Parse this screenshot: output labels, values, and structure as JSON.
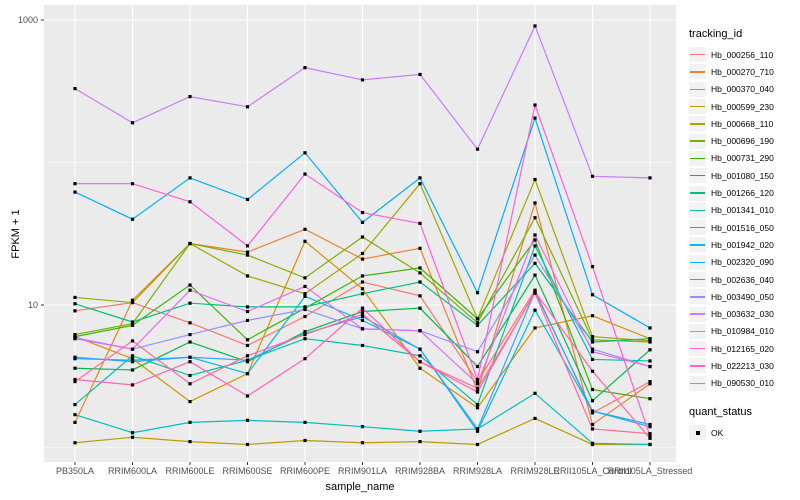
{
  "chart": {
    "y_axis_title": "FPKM + 1",
    "x_axis_title": "sample_name",
    "legend": {
      "tracking_title": "tracking_id",
      "quant_title": "quant_status",
      "quant_ok_label": "OK"
    },
    "colors": {
      "panel_bg": "#ebebeb",
      "gridline": "#ffffff",
      "tick_text": "#4d4d4d",
      "point": "#000000",
      "legend_key_bg": "#f2f2f2"
    }
  },
  "chart_data": {
    "type": "line",
    "title": "",
    "xlabel": "sample_name",
    "ylabel": "FPKM + 1",
    "yscale": "log10",
    "ylim": [
      1,
      1000
    ],
    "y_major_ticks": [
      {
        "label": "10",
        "value": 10
      },
      {
        "label": "1000",
        "value": 1000
      }
    ],
    "y_minor_ticks": [
      1,
      100
    ],
    "grid": true,
    "legend_position": "right",
    "point_shape": "filled-square",
    "quant_status_series": "OK",
    "categories": [
      "PB350LA",
      "RRIM600LA",
      "RRIM600LE",
      "RRIM600SE",
      "RRIM600PE",
      "RRIM901LA",
      "RRIM928BA",
      "RRIM928LA",
      "RRIM928LE",
      "RRII105LA_Control",
      "RRII105LA_Stressed"
    ],
    "series": [
      {
        "name": "Hb_000256_110",
        "color": "#F8766D",
        "values": [
          9.1,
          10.4,
          7.5,
          5.2,
          8.3,
          14.5,
          11.6,
          2.9,
          12.7,
          1.75,
          2.9
        ]
      },
      {
        "name": "Hb_000270_710",
        "color": "#EA8331",
        "values": [
          1.5,
          10.8,
          27,
          23.5,
          34,
          21,
          25,
          2.5,
          52,
          1.45,
          2.8
        ]
      },
      {
        "name": "Hb_000370_040",
        "color": "#D89000",
        "values": [
          6.0,
          4.2,
          2.1,
          3.3,
          28,
          13,
          3.6,
          1.9,
          6.9,
          8.4,
          5.8
        ]
      },
      {
        "name": "Hb_000599_230",
        "color": "#C09B00",
        "values": [
          1.08,
          1.18,
          1.1,
          1.05,
          1.12,
          1.08,
          1.1,
          1.05,
          1.6,
          1.05,
          1.05
        ]
      },
      {
        "name": "Hb_000668_110",
        "color": "#A3A500",
        "values": [
          11.3,
          10.4,
          27,
          16,
          12,
          23,
          71,
          8.0,
          76,
          6.0,
          5.6
        ]
      },
      {
        "name": "Hb_000696_190",
        "color": "#7CAE00",
        "values": [
          6.2,
          7.4,
          27,
          22.4,
          15.5,
          30,
          16.8,
          7.5,
          41,
          5.7,
          5.5
        ]
      },
      {
        "name": "Hb_000731_290",
        "color": "#39B600",
        "values": [
          6.0,
          7.2,
          13.8,
          5.7,
          9.5,
          16,
          18.2,
          8.0,
          28.6,
          2.55,
          2.2
        ]
      },
      {
        "name": "Hb_001080_150",
        "color": "#00BB4E",
        "values": [
          3.6,
          3.5,
          5.5,
          4.0,
          6.5,
          9.0,
          9.5,
          3.7,
          16.2,
          2.13,
          4.85
        ]
      },
      {
        "name": "Hb_001266_120",
        "color": "#00BF7D",
        "values": [
          10.2,
          7.6,
          10.3,
          9.7,
          9.7,
          12,
          14.5,
          7.2,
          19.6,
          5.5,
          5.8
        ]
      },
      {
        "name": "Hb_001341_010",
        "color": "#00C1A3",
        "values": [
          2.0,
          4.4,
          3.2,
          4.1,
          5.8,
          5.2,
          4.4,
          2.0,
          26,
          4.15,
          4.05
        ]
      },
      {
        "name": "Hb_001516_050",
        "color": "#00BFC4",
        "values": [
          1.7,
          1.27,
          1.5,
          1.55,
          1.5,
          1.4,
          1.3,
          1.35,
          2.4,
          1.07,
          1.05
        ]
      },
      {
        "name": "Hb_001942_020",
        "color": "#00BAE0",
        "values": [
          4.2,
          4.1,
          4.3,
          3.3,
          11.5,
          7.8,
          4.9,
          1.3,
          9.2,
          1.8,
          1.45
        ]
      },
      {
        "name": "Hb_002320_090",
        "color": "#00B0F6",
        "values": [
          62,
          40,
          78,
          55,
          117,
          38,
          78,
          12.2,
          205,
          11.8,
          6.9
        ]
      },
      {
        "name": "Hb_002636_040",
        "color": "#35A2FF",
        "values": [
          4.3,
          4.0,
          4.3,
          4.1,
          6.3,
          8.3,
          4.9,
          1.35,
          12.4,
          1.8,
          1.4
        ]
      },
      {
        "name": "Hb_003490_050",
        "color": "#9590FF",
        "values": [
          5.9,
          4.9,
          6.2,
          7.8,
          9.3,
          6.8,
          6.6,
          4.7,
          22.4,
          4.9,
          3.7
        ]
      },
      {
        "name": "Hb_003632_030",
        "color": "#C77CFF",
        "values": [
          330,
          190,
          290,
          246,
          463,
          380,
          415,
          124,
          908,
          80,
          78
        ]
      },
      {
        "name": "Hb_010984_010",
        "color": "#E76BF3",
        "values": [
          5.8,
          4.9,
          12.7,
          9.0,
          13.5,
          6.8,
          6.6,
          2.8,
          31,
          4.7,
          3.7
        ]
      },
      {
        "name": "Hb_012165_020",
        "color": "#FA62DB",
        "values": [
          71,
          71,
          53,
          26,
          83,
          44.5,
          37.4,
          3.0,
          253,
          18.6,
          1.2
        ]
      },
      {
        "name": "Hb_022213_030",
        "color": "#FF62BC",
        "values": [
          3.0,
          2.75,
          4.0,
          2.3,
          4.2,
          9.5,
          4.0,
          2.45,
          12.4,
          3.43,
          1.16
        ]
      },
      {
        "name": "Hb_090530_010",
        "color": "#FF6A98",
        "values": [
          2.9,
          5.6,
          2.8,
          4.4,
          6.2,
          8.6,
          4.0,
          2.6,
          12.1,
          1.35,
          1.25
        ]
      }
    ]
  }
}
